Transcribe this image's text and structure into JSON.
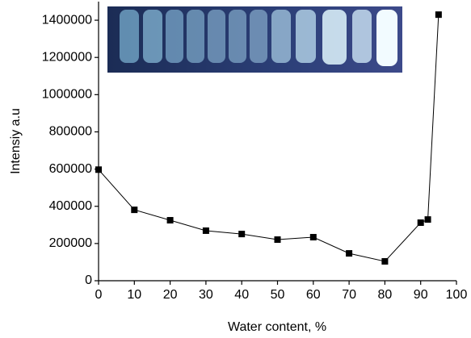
{
  "chart_data": {
    "type": "line",
    "x_label": "Water content, %",
    "y_label": "Intensiy a.u",
    "x": [
      0,
      10,
      20,
      30,
      40,
      50,
      60,
      70,
      80,
      90,
      92,
      95
    ],
    "series": [
      {
        "color": "#000000",
        "values": [
          597000,
          381000,
          325000,
          269000,
          251000,
          221000,
          234000,
          147000,
          104000,
          312000,
          329000,
          1430000
        ]
      }
    ],
    "xlim": [
      0,
      100
    ],
    "xticks": [
      0,
      10,
      20,
      30,
      40,
      50,
      60,
      70,
      80,
      90,
      100
    ],
    "ylim": [
      0,
      1500000
    ],
    "yticks": [
      0,
      200000,
      400000,
      600000,
      800000,
      1000000,
      1200000,
      1400000
    ]
  }
}
